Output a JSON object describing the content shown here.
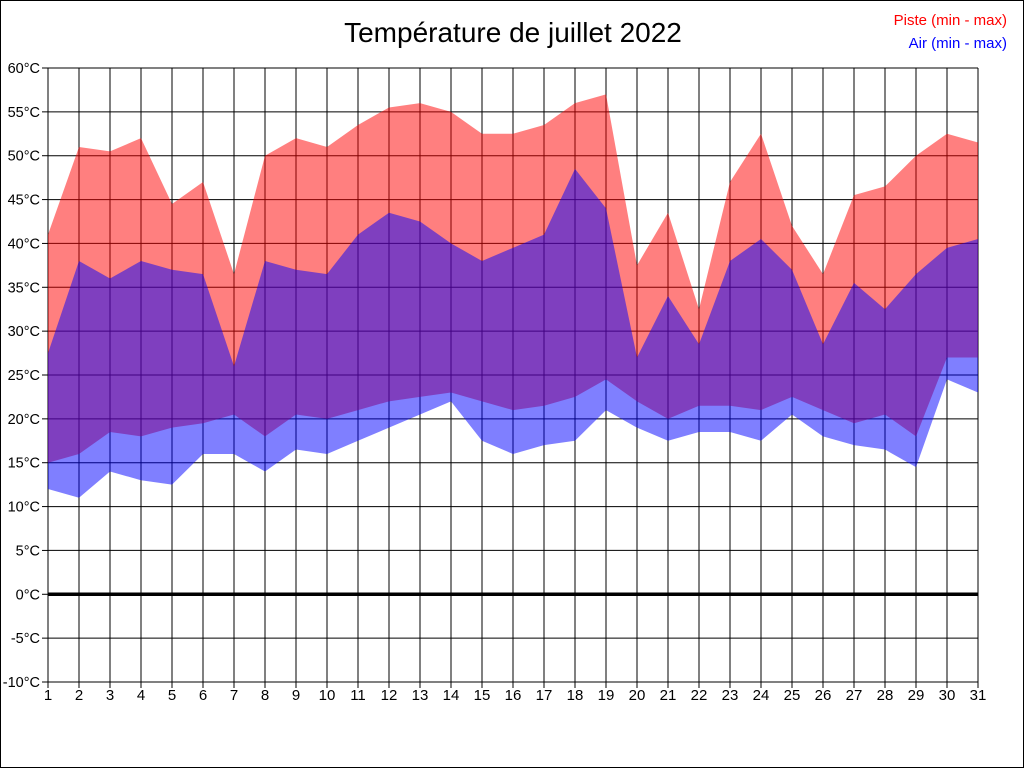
{
  "title": "Température de juillet 2022",
  "legend": {
    "piste_label": "Piste (min - max)",
    "air_label": "Air (min - max)"
  },
  "colors": {
    "piste": "#ff0000",
    "air": "#0000ff",
    "fill_opacity": 0.5,
    "grid": "#000000",
    "zero_line": "#000000",
    "text": "#000000"
  },
  "chart_data": {
    "type": "area",
    "title": "Température de juillet 2022",
    "xlabel": "",
    "ylabel": "",
    "unit": "°C",
    "ylim": [
      -10,
      60
    ],
    "yticks": [
      60,
      55,
      50,
      45,
      40,
      35,
      30,
      25,
      20,
      15,
      10,
      5,
      0,
      -5,
      -10
    ],
    "grid": true,
    "legend_position": "top-right",
    "zero_line_at": 0,
    "x": [
      1,
      2,
      3,
      4,
      5,
      6,
      7,
      8,
      9,
      10,
      11,
      12,
      13,
      14,
      15,
      16,
      17,
      18,
      19,
      20,
      21,
      22,
      23,
      24,
      25,
      26,
      27,
      28,
      29,
      30,
      31
    ],
    "series": [
      {
        "name": "Piste (min - max)",
        "color": "#ff0000",
        "max": [
          41,
          51,
          50.5,
          52,
          44.5,
          47,
          36.5,
          50,
          52,
          51,
          53.5,
          55.5,
          56,
          55,
          52.5,
          52.5,
          53.5,
          56,
          57,
          37.5,
          43.5,
          32.5,
          47,
          52.5,
          42,
          36.5,
          45.5,
          46.5,
          50,
          52.5,
          51.5
        ],
        "min": [
          15,
          16,
          18.5,
          18,
          19,
          19.5,
          20.5,
          18,
          20.5,
          20,
          21,
          22,
          22.5,
          23,
          22,
          21,
          21.5,
          22.5,
          24.5,
          22,
          20,
          21.5,
          21.5,
          21,
          22.5,
          21,
          19.5,
          20.5,
          18,
          27,
          27
        ]
      },
      {
        "name": "Air (min - max)",
        "color": "#0000ff",
        "max": [
          27.5,
          38,
          36,
          38,
          37,
          36.5,
          26,
          38,
          37,
          36.5,
          41,
          43.5,
          42.5,
          40,
          38,
          39.5,
          41,
          48.5,
          44,
          27,
          34,
          28.5,
          38,
          40.5,
          37,
          28.5,
          35.5,
          32.5,
          36.5,
          39.5,
          40.5
        ],
        "min": [
          12,
          11,
          14,
          13,
          12.5,
          16,
          16,
          14,
          16.5,
          16,
          17.5,
          19,
          20.5,
          22,
          17.5,
          16,
          17,
          17.5,
          21,
          19,
          17.5,
          18.5,
          18.5,
          17.5,
          20.5,
          18,
          17,
          16.5,
          14.5,
          24.5,
          23
        ]
      }
    ]
  }
}
